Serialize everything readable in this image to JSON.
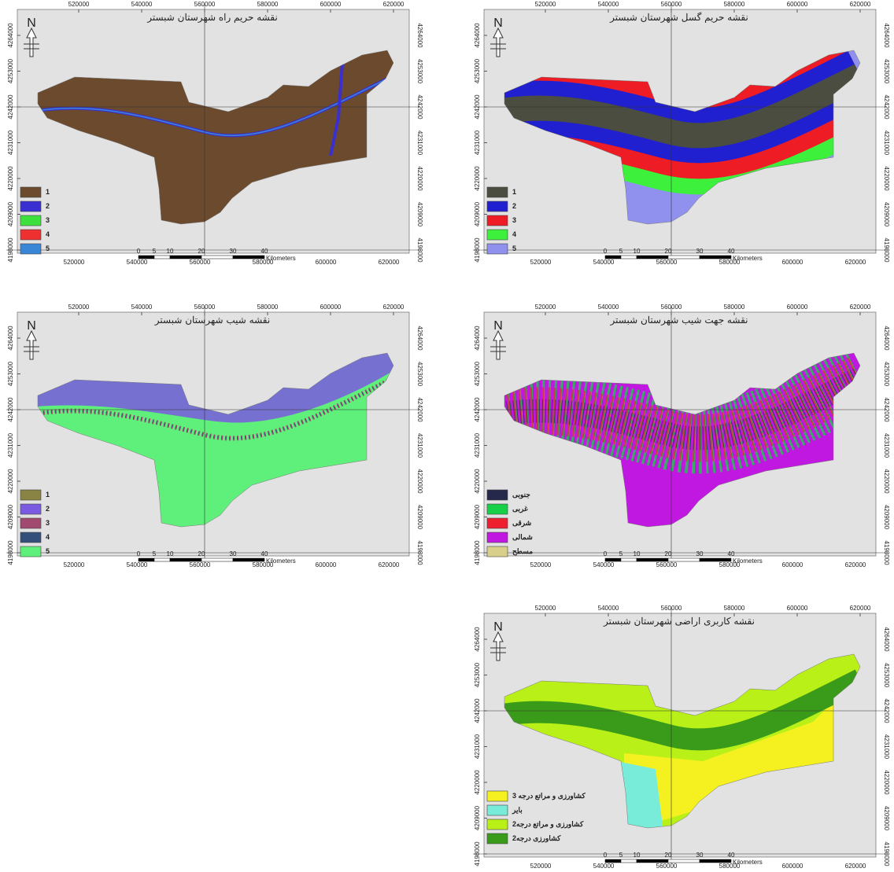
{
  "north": "N",
  "scale_unit": "Kilometers",
  "scale_labels": [
    0,
    5,
    10,
    20,
    30,
    40
  ],
  "x_ticks": [
    520000,
    540000,
    560000,
    580000,
    600000,
    620000
  ],
  "y_ticks": [
    4264000,
    4253000,
    4242000,
    4231000,
    4220000,
    4209000,
    4198000
  ],
  "maps": [
    {
      "title": "نقشه حریم راه شهرستان شبستر",
      "legend": [
        {
          "label": "1",
          "color": "#6b4a2e"
        },
        {
          "label": "2",
          "color": "#3a2fd0"
        },
        {
          "label": "3",
          "color": "#3ee03e"
        },
        {
          "label": "4",
          "color": "#ee3030"
        },
        {
          "label": "5",
          "color": "#3a86d6"
        }
      ]
    },
    {
      "title": "نقشه حریم گسل شهرستان شبستر",
      "legend": [
        {
          "label": "1",
          "color": "#4a4d3f"
        },
        {
          "label": "2",
          "color": "#2020d0"
        },
        {
          "label": "3",
          "color": "#ee1c24"
        },
        {
          "label": "4",
          "color": "#3cf03c"
        },
        {
          "label": "5",
          "color": "#9090ee"
        }
      ]
    },
    {
      "title": "نقشه شیب شهرستان شبستر",
      "legend": [
        {
          "label": "1",
          "color": "#8a8444"
        },
        {
          "label": "2",
          "color": "#7a5ae0"
        },
        {
          "label": "3",
          "color": "#a04a70"
        },
        {
          "label": "4",
          "color": "#34507a"
        },
        {
          "label": "5",
          "color": "#5ef07a"
        }
      ]
    },
    {
      "title": "نقشه جهت شیب شهرستان شبستر",
      "legend": [
        {
          "label": "جنوبی",
          "color": "#25284a"
        },
        {
          "label": "غربی",
          "color": "#18d048"
        },
        {
          "label": "شرقی",
          "color": "#ee2030"
        },
        {
          "label": "شمالی",
          "color": "#c018e0"
        },
        {
          "label": "مسطح",
          "color": "#d8d08a"
        }
      ]
    },
    {
      "title": "نقشه کاربری اراضی شهرستان شبستر",
      "legend": [
        {
          "label": "کشاورزی و مراتع درجه 3",
          "color": "#f5f020"
        },
        {
          "label": "بایر",
          "color": "#78ecd8"
        },
        {
          "label": "کشاورزی و مراتع درجه2",
          "color": "#b8f018"
        },
        {
          "label": "کشاورزی درجه2",
          "color": "#3a9a1a"
        }
      ]
    }
  ]
}
